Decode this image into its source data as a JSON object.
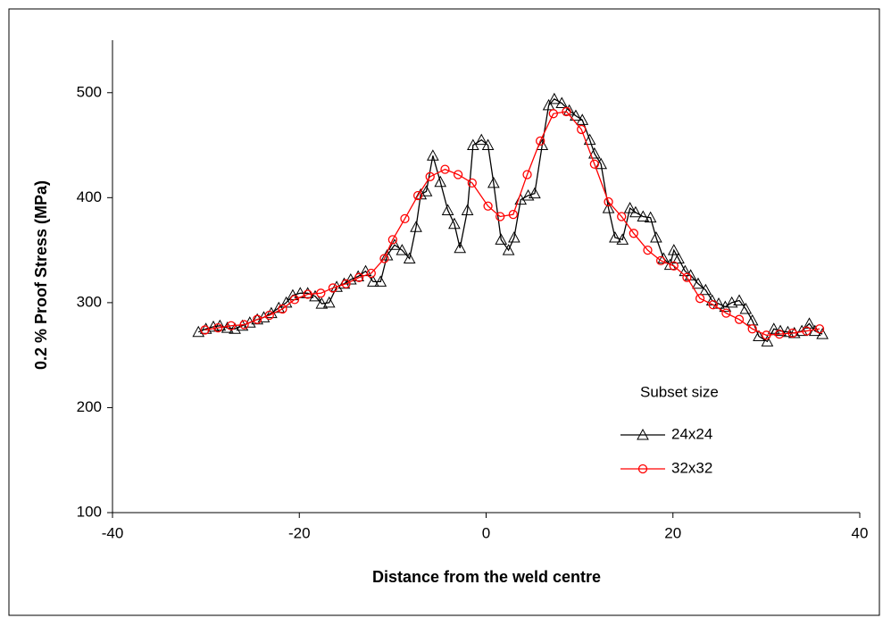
{
  "chart_data": {
    "type": "line",
    "xlabel": "Distance from the weld centre",
    "ylabel": "0.2 % Proof Stress (MPa)",
    "legend_title": "Subset size",
    "xlim": [
      -40,
      40
    ],
    "xticks": [
      -40,
      -20,
      0,
      20,
      40
    ],
    "ylim": [
      100,
      550
    ],
    "yticks": [
      100,
      200,
      300,
      400,
      500
    ],
    "series": [
      {
        "name": "24x24",
        "color": "#000000",
        "marker": "triangle",
        "x": [
          -30.8,
          -30.0,
          -29.2,
          -28.5,
          -27.7,
          -26.9,
          -26.1,
          -25.3,
          -24.5,
          -23.8,
          -23.0,
          -22.2,
          -21.4,
          -20.7,
          -19.9,
          -19.1,
          -18.3,
          -17.6,
          -16.8,
          -16.0,
          -15.2,
          -14.5,
          -13.7,
          -12.9,
          -12.1,
          -11.3,
          -10.6,
          -9.8,
          -9.0,
          -8.2,
          -7.5,
          -7.0,
          -6.4,
          -5.7,
          -4.9,
          -4.1,
          -3.4,
          -2.8,
          -2.0,
          -1.4,
          -0.5,
          0.2,
          0.8,
          1.6,
          2.4,
          3.0,
          3.7,
          4.5,
          5.2,
          6.0,
          6.7,
          7.3,
          8.1,
          8.9,
          9.6,
          10.3,
          11.1,
          11.6,
          12.3,
          13.1,
          13.8,
          14.6,
          15.4,
          16.0,
          16.8,
          17.6,
          18.2,
          19.0,
          19.7,
          20.1,
          20.6,
          21.3,
          21.9,
          22.7,
          23.5,
          24.2,
          24.9,
          25.6,
          26.3,
          27.1,
          27.8,
          28.5,
          29.2,
          30.1,
          30.8,
          31.5,
          32.3,
          33.0,
          33.8,
          34.6,
          35.2,
          36.0
        ],
        "values": [
          272,
          275,
          277,
          278,
          276,
          275,
          278,
          281,
          284,
          286,
          290,
          295,
          300,
          307,
          309,
          309,
          306,
          299,
          300,
          315,
          318,
          322,
          325,
          330,
          320,
          320,
          345,
          355,
          350,
          342,
          372,
          403,
          406,
          440,
          415,
          388,
          375,
          352,
          388,
          450,
          455,
          450,
          414,
          360,
          350,
          362,
          398,
          402,
          404,
          450,
          488,
          494,
          490,
          483,
          478,
          474,
          455,
          442,
          432,
          390,
          362,
          360,
          390,
          386,
          382,
          381,
          362,
          342,
          336,
          350,
          342,
          330,
          326,
          318,
          312,
          302,
          299,
          296,
          300,
          302,
          294,
          283,
          268,
          263,
          275,
          273,
          272,
          271,
          273,
          280,
          273,
          270
        ]
      },
      {
        "name": "32x32",
        "color": "#ff0000",
        "marker": "circle",
        "x": [
          -30.1,
          -28.7,
          -27.3,
          -25.9,
          -24.5,
          -23.2,
          -21.8,
          -20.5,
          -19.1,
          -17.7,
          -16.4,
          -15.0,
          -13.6,
          -12.3,
          -10.9,
          -10.0,
          -8.7,
          -7.3,
          -6.0,
          -4.4,
          -3.0,
          -1.5,
          0.2,
          1.5,
          2.9,
          4.4,
          5.8,
          7.2,
          8.6,
          10.2,
          11.6,
          13.1,
          14.5,
          15.8,
          17.3,
          18.7,
          20.1,
          21.5,
          22.9,
          24.3,
          25.7,
          27.1,
          28.5,
          30.0,
          31.4,
          32.8,
          34.3,
          35.7
        ],
        "values": [
          274,
          276,
          278,
          279,
          284,
          288,
          294,
          303,
          308,
          309,
          314,
          318,
          324,
          328,
          342,
          360,
          380,
          402,
          420,
          427,
          422,
          414,
          392,
          382,
          384,
          422,
          454,
          480,
          482,
          465,
          432,
          396,
          382,
          366,
          350,
          340,
          335,
          324,
          304,
          298,
          290,
          284,
          275,
          269,
          270,
          271,
          273,
          275
        ]
      }
    ]
  }
}
